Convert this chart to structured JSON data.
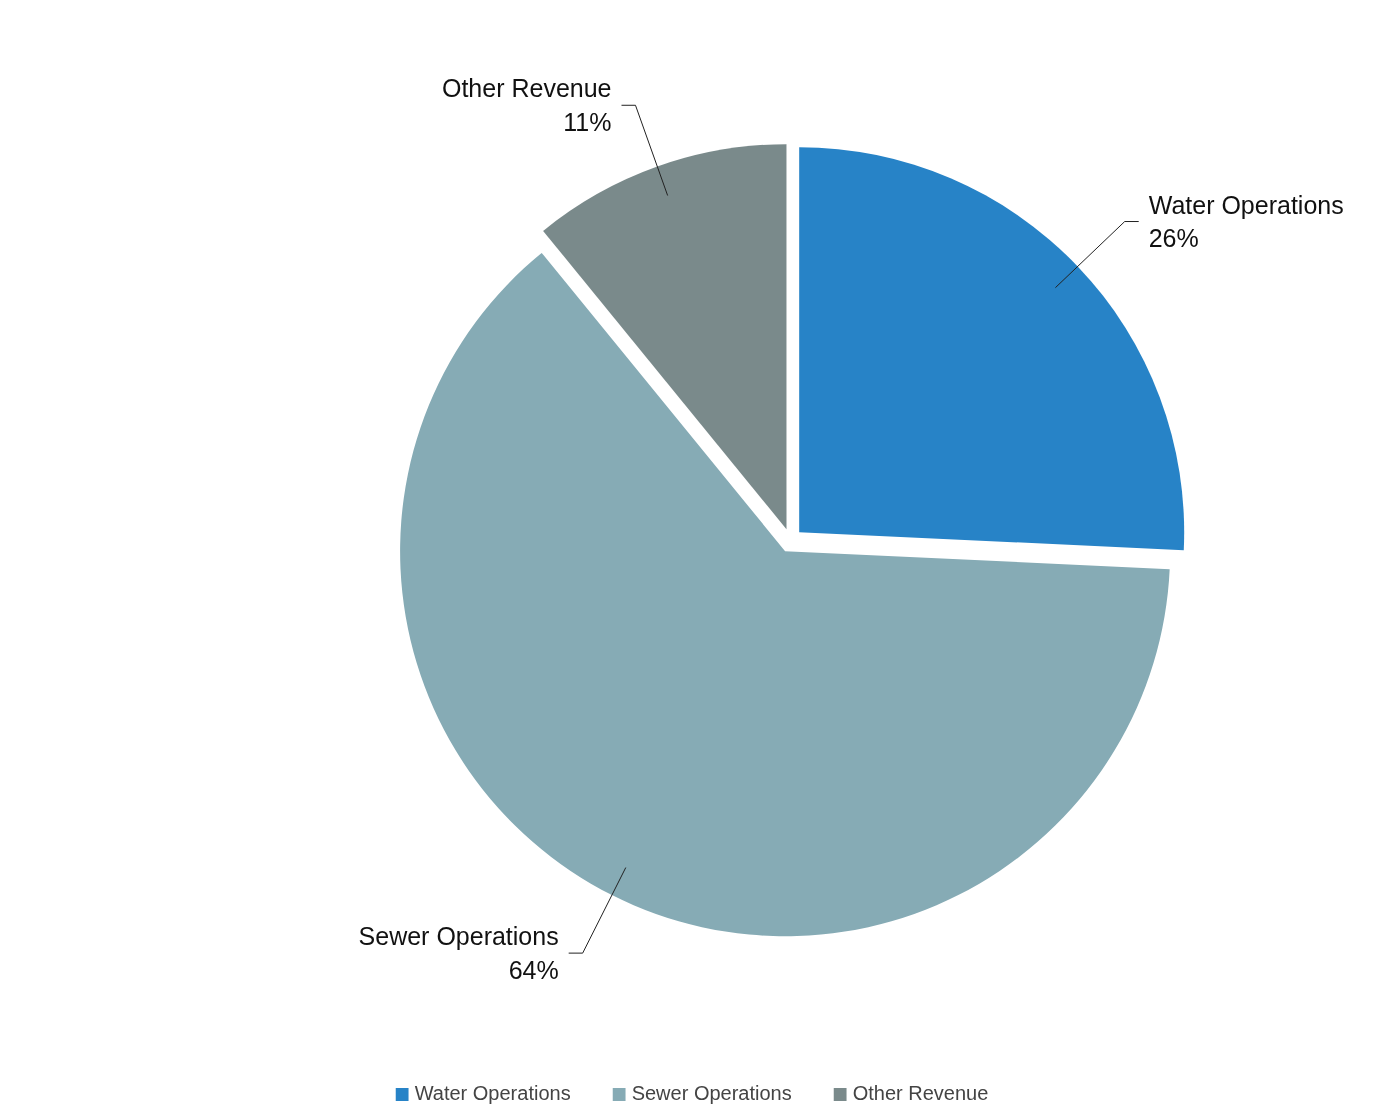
{
  "chart_data": {
    "type": "pie",
    "categories": [
      "Water Operations",
      "Sewer Operations",
      "Other Revenue"
    ],
    "values": [
      26,
      64,
      11
    ],
    "colors": [
      "#2783c7",
      "#86abb5",
      "#7a8a8b"
    ],
    "value_labels": [
      "26%",
      "64%",
      "11%"
    ],
    "legend": "bottom"
  }
}
